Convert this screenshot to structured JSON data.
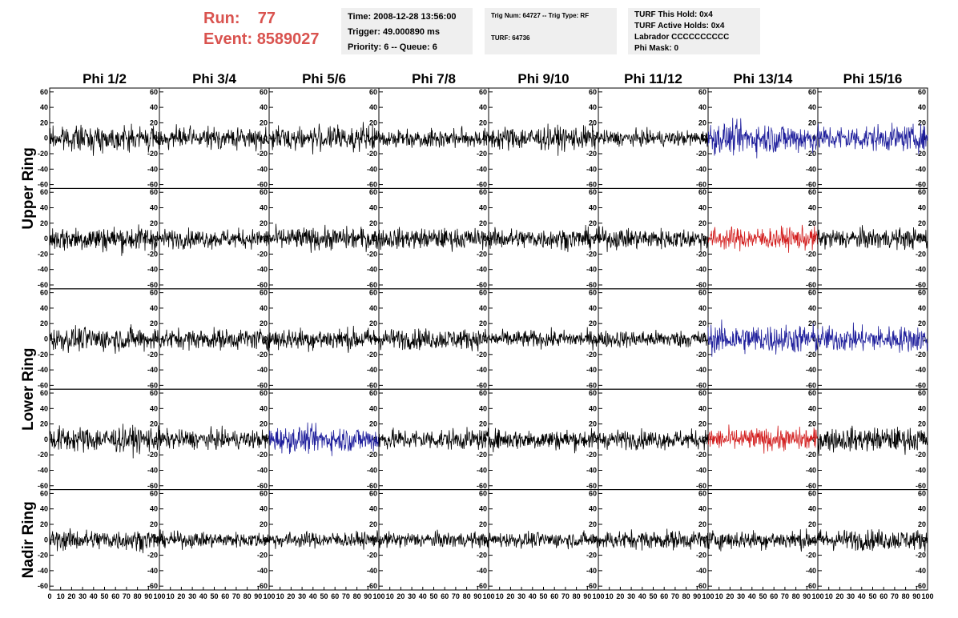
{
  "header": {
    "run_label": "Run:",
    "run_value": "77",
    "event_label": "Event:",
    "event_value": "8589027",
    "time": "Time: 2008-12-28 13:56:00",
    "trigger": "Trigger: 49.000890 ms",
    "priority": "Priority: 6 -- Queue: 6",
    "trig_num": "Trig Num: 64727 -- Trig Type: RF",
    "turf": "TURF: 64736",
    "turf_this_hold": "TURF This Hold: 0x4",
    "turf_active_holds": "TURF Active Holds: 0x4",
    "labrador": "Labrador CCCCCCCCCC",
    "phi_mask": "Phi Mask: 0"
  },
  "chart_data": {
    "type": "line",
    "columns": [
      "Phi 1/2",
      "Phi 3/4",
      "Phi 5/6",
      "Phi 7/8",
      "Phi 9/10",
      "Phi 11/12",
      "Phi 13/14",
      "Phi 15/16"
    ],
    "ring_labels": [
      "Upper Ring",
      "Lower Ring",
      "Nadir Ring"
    ],
    "rows_per_ring": [
      2,
      2,
      1
    ],
    "ylim": [
      -65,
      65
    ],
    "yticks": [
      -60,
      -40,
      -20,
      0,
      20,
      40,
      60
    ],
    "xlim": [
      0,
      100
    ],
    "xticks": [
      0,
      10,
      20,
      30,
      40,
      50,
      60,
      70,
      80,
      90,
      100
    ],
    "samples_per_trace": 260,
    "colors": {
      "normal": "#000000",
      "blue": "#1f1f9c",
      "red": "#d32020"
    },
    "trace_colors": [
      [
        "normal",
        "normal",
        "normal",
        "normal",
        "normal",
        "normal",
        "blue",
        "blue"
      ],
      [
        "normal",
        "normal",
        "normal",
        "normal",
        "normal",
        "normal",
        "red",
        "normal"
      ],
      [
        "normal",
        "normal",
        "normal",
        "normal",
        "normal",
        "normal",
        "blue",
        "blue"
      ],
      [
        "normal",
        "normal",
        "blue",
        "normal",
        "normal",
        "normal",
        "red",
        "normal"
      ],
      [
        "normal",
        "normal",
        "normal",
        "normal",
        "normal",
        "normal",
        "normal",
        "normal"
      ]
    ],
    "trace_amplitude": [
      [
        14,
        12,
        14,
        11,
        14,
        9,
        18,
        15
      ],
      [
        15,
        11,
        13,
        12,
        12,
        12,
        13,
        12
      ],
      [
        14,
        12,
        13,
        12,
        10,
        10,
        17,
        15
      ],
      [
        15,
        11,
        15,
        12,
        12,
        11,
        13,
        14
      ],
      [
        12,
        9,
        9,
        9,
        9,
        11,
        11,
        12
      ]
    ]
  }
}
